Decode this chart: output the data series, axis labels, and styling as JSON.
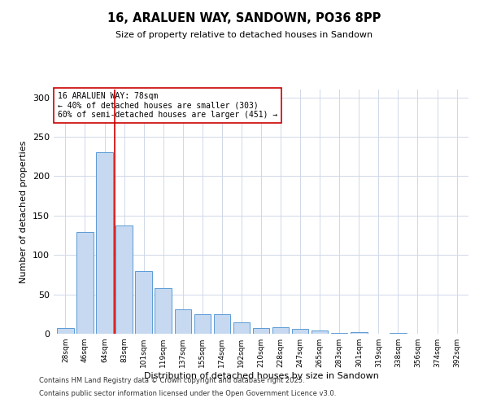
{
  "title": "16, ARALUEN WAY, SANDOWN, PO36 8PP",
  "subtitle": "Size of property relative to detached houses in Sandown",
  "xlabel": "Distribution of detached houses by size in Sandown",
  "ylabel": "Number of detached properties",
  "bar_labels": [
    "28sqm",
    "46sqm",
    "64sqm",
    "83sqm",
    "101sqm",
    "119sqm",
    "137sqm",
    "155sqm",
    "174sqm",
    "192sqm",
    "210sqm",
    "228sqm",
    "247sqm",
    "265sqm",
    "283sqm",
    "301sqm",
    "319sqm",
    "338sqm",
    "356sqm",
    "374sqm",
    "392sqm"
  ],
  "bar_values": [
    7,
    129,
    230,
    137,
    80,
    58,
    31,
    25,
    25,
    14,
    7,
    8,
    6,
    4,
    1,
    2,
    0,
    1,
    0,
    0,
    0
  ],
  "bar_color": "#c6d9f0",
  "bar_edge_color": "#5b9bd5",
  "vline_x": 2.5,
  "vline_color": "#cc0000",
  "ylim": [
    0,
    310
  ],
  "yticks": [
    0,
    50,
    100,
    150,
    200,
    250,
    300
  ],
  "annotation_text": "16 ARALUEN WAY: 78sqm\n← 40% of detached houses are smaller (303)\n60% of semi-detached houses are larger (451) →",
  "annotation_box_color": "#ffffff",
  "annotation_box_edge": "#cc0000",
  "footer1": "Contains HM Land Registry data © Crown copyright and database right 2025.",
  "footer2": "Contains public sector information licensed under the Open Government Licence v3.0.",
  "bg_color": "#ffffff",
  "grid_color": "#d0d8e8"
}
